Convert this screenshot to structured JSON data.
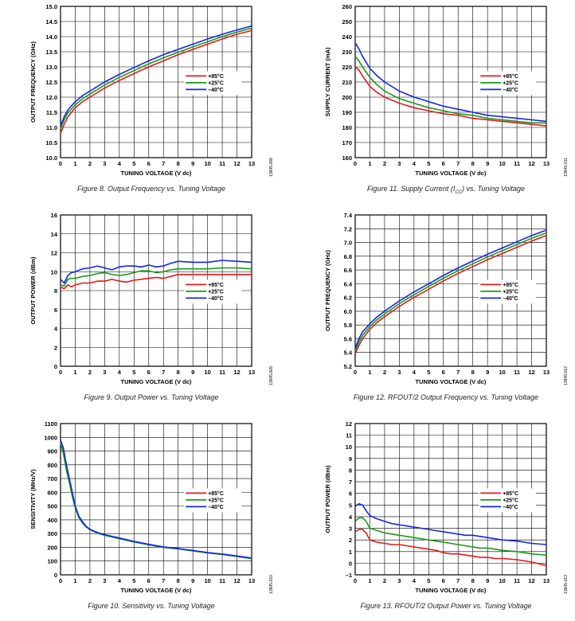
{
  "colors": {
    "p85": "#e41a1c",
    "p25": "#1a9a1a",
    "m40": "#1428e0"
  },
  "legend": [
    "+85°C",
    "+25°C",
    "–40°C"
  ],
  "chart_data": [
    {
      "type": "line",
      "caption": "Figure 8. Output Frequency vs. Tuning Voltage",
      "figid": "13845-008",
      "xlabel": "TUNING VOLTAGE (V dc)",
      "ylabel": "OUTPUT FREQUENCY (GHz)",
      "xlim": [
        0,
        13
      ],
      "ylim": [
        10.0,
        15.0
      ],
      "xticks": [
        "0",
        "1",
        "2",
        "3",
        "4",
        "5",
        "6",
        "7",
        "8",
        "9",
        "10",
        "11",
        "12",
        "13"
      ],
      "yticks": [
        "10.0",
        "10.5",
        "11.0",
        "11.5",
        "12.0",
        "12.5",
        "13.0",
        "13.5",
        "14.0",
        "14.5",
        "15.0"
      ],
      "legend_position": "right",
      "x": [
        0,
        0.25,
        0.5,
        1,
        1.5,
        2,
        3,
        4,
        5,
        6,
        7,
        8,
        9,
        10,
        11,
        12,
        13
      ],
      "series": [
        {
          "name": "+85°C",
          "values": [
            10.8,
            11.1,
            11.35,
            11.65,
            11.85,
            12.0,
            12.3,
            12.55,
            12.78,
            13.0,
            13.2,
            13.4,
            13.58,
            13.75,
            13.92,
            14.08,
            14.2
          ]
        },
        {
          "name": "+25°C",
          "values": [
            10.95,
            11.25,
            11.48,
            11.75,
            11.95,
            12.1,
            12.4,
            12.65,
            12.88,
            13.1,
            13.3,
            13.48,
            13.66,
            13.83,
            14.0,
            14.15,
            14.28
          ]
        },
        {
          "name": "–40°C",
          "values": [
            11.05,
            11.35,
            11.58,
            11.85,
            12.05,
            12.2,
            12.5,
            12.75,
            12.98,
            13.2,
            13.4,
            13.58,
            13.75,
            13.92,
            14.08,
            14.22,
            14.35
          ]
        }
      ]
    },
    {
      "type": "line",
      "caption": "Figure 9. Output Power vs. Tuning Voltage",
      "figid": "13845-009",
      "xlabel": "TUNING VOLTAGE (V dc)",
      "ylabel": "OUTPUT POWER (dBm)",
      "xlim": [
        0,
        13
      ],
      "ylim": [
        0,
        16
      ],
      "xticks": [
        "0",
        "1",
        "2",
        "3",
        "4",
        "5",
        "6",
        "7",
        "8",
        "9",
        "10",
        "11",
        "12",
        "13"
      ],
      "yticks": [
        "0",
        "2",
        "4",
        "6",
        "8",
        "10",
        "12",
        "14",
        "16"
      ],
      "legend_position": "right",
      "x": [
        0,
        0.25,
        0.5,
        0.75,
        1,
        1.5,
        2,
        2.5,
        3,
        3.5,
        4,
        4.5,
        5,
        5.5,
        6,
        6.5,
        7,
        7.5,
        8,
        9,
        10,
        11,
        12,
        13
      ],
      "series": [
        {
          "name": "+85°C",
          "values": [
            8.4,
            8.2,
            8.6,
            8.4,
            8.6,
            8.8,
            8.8,
            9.0,
            9.0,
            9.2,
            9.0,
            8.9,
            9.1,
            9.2,
            9.3,
            9.4,
            9.3,
            9.5,
            9.7,
            9.7,
            9.7,
            9.7,
            9.7,
            9.7
          ]
        },
        {
          "name": "+25°C",
          "values": [
            8.6,
            8.5,
            9.2,
            9.3,
            9.3,
            9.5,
            9.6,
            9.8,
            9.9,
            9.7,
            9.6,
            9.7,
            9.9,
            10.1,
            10.1,
            9.9,
            10.0,
            10.2,
            10.3,
            10.3,
            10.3,
            10.4,
            10.4,
            10.3
          ]
        },
        {
          "name": "–40°C",
          "values": [
            9.2,
            8.8,
            9.6,
            9.9,
            10.0,
            10.3,
            10.4,
            10.6,
            10.4,
            10.2,
            10.5,
            10.6,
            10.6,
            10.5,
            10.7,
            10.5,
            10.6,
            10.9,
            11.1,
            11.0,
            11.0,
            11.2,
            11.1,
            11.0
          ]
        }
      ]
    },
    {
      "type": "line",
      "caption": "Figure 10. Sensitivity vs. Tuning Voltage",
      "figid": "13845-010",
      "xlabel": "TUNING VOLTAGE (V dc)",
      "ylabel": "SENSITIVITY (MHz/V)",
      "xlim": [
        0,
        13
      ],
      "ylim": [
        0,
        1100
      ],
      "xticks": [
        "0",
        "1",
        "2",
        "3",
        "4",
        "5",
        "6",
        "7",
        "8",
        "9",
        "10",
        "11",
        "12",
        "13"
      ],
      "yticks": [
        "0",
        "100",
        "200",
        "300",
        "400",
        "500",
        "600",
        "700",
        "800",
        "900",
        "1000",
        "1100"
      ],
      "legend_position": "right",
      "x": [
        0,
        0.2,
        0.4,
        0.6,
        0.8,
        1,
        1.25,
        1.5,
        1.75,
        2,
        2.5,
        3,
        4,
        5,
        6,
        7,
        8,
        9,
        10,
        11,
        12,
        13
      ],
      "series": [
        {
          "name": "+85°C",
          "values": [
            970,
            900,
            780,
            680,
            580,
            490,
            420,
            380,
            350,
            330,
            305,
            290,
            265,
            240,
            220,
            200,
            190,
            175,
            160,
            150,
            135,
            120
          ]
        },
        {
          "name": "+25°C",
          "values": [
            960,
            880,
            760,
            670,
            570,
            485,
            415,
            375,
            348,
            328,
            303,
            288,
            263,
            238,
            218,
            200,
            188,
            174,
            160,
            148,
            134,
            118
          ]
        },
        {
          "name": "–40°C",
          "values": [
            980,
            920,
            800,
            700,
            600,
            500,
            425,
            385,
            352,
            332,
            308,
            292,
            268,
            243,
            222,
            203,
            191,
            177,
            162,
            151,
            137,
            122
          ]
        }
      ]
    },
    {
      "type": "line",
      "caption": "Figure 11. Supply Current (I",
      "caption_sub": "CC",
      "caption_tail": ") vs. Tuning Voltage",
      "figid": "13845-011",
      "xlabel": "TUNING VOLTAGE (V dc)",
      "ylabel": "SUPPLY CURRENT (mA)",
      "xlim": [
        0,
        13
      ],
      "ylim": [
        160,
        260
      ],
      "xticks": [
        "0",
        "1",
        "2",
        "3",
        "4",
        "5",
        "6",
        "7",
        "8",
        "9",
        "10",
        "11",
        "12",
        "13"
      ],
      "yticks": [
        "160",
        "170",
        "180",
        "190",
        "200",
        "210",
        "220",
        "230",
        "240",
        "250",
        "260"
      ],
      "legend_position": "right",
      "x": [
        0,
        0.25,
        0.5,
        1,
        1.5,
        2,
        3,
        4,
        5,
        6,
        7,
        8,
        9,
        10,
        11,
        12,
        13
      ],
      "series": [
        {
          "name": "+85°C",
          "values": [
            220,
            218,
            214,
            207,
            203,
            200,
            196,
            193,
            191,
            189,
            188,
            186,
            185,
            184,
            183,
            182,
            181
          ]
        },
        {
          "name": "+25°C",
          "values": [
            227,
            224,
            220,
            213,
            208,
            204,
            199,
            196,
            193,
            191,
            189,
            188,
            186,
            185,
            184,
            183,
            183
          ]
        },
        {
          "name": "–40°C",
          "values": [
            236,
            232,
            227,
            219,
            214,
            210,
            204,
            200,
            197,
            194,
            192,
            190,
            188,
            187,
            186,
            185,
            184
          ]
        }
      ]
    },
    {
      "type": "line",
      "caption": "Figure 12. RFOUT/2 Output Frequency vs. Tuning Voltage",
      "figid": "13845-012",
      "xlabel": "TUNING VOLTAGE (V dc)",
      "ylabel": "OUTPUT FREQUENCY (GHz)",
      "xlim": [
        0,
        13
      ],
      "ylim": [
        5.2,
        7.4
      ],
      "xticks": [
        "0",
        "1",
        "2",
        "3",
        "4",
        "5",
        "6",
        "7",
        "8",
        "9",
        "10",
        "11",
        "12",
        "13"
      ],
      "yticks": [
        "5.2",
        "5.4",
        "5.6",
        "5.8",
        "6.0",
        "6.2",
        "6.4",
        "6.6",
        "6.8",
        "7.0",
        "7.2",
        "7.4"
      ],
      "legend_position": "right",
      "x": [
        0,
        0.25,
        0.5,
        1,
        1.5,
        2,
        3,
        4,
        5,
        6,
        7,
        8,
        9,
        10,
        11,
        12,
        13
      ],
      "series": [
        {
          "name": "+85°C",
          "values": [
            5.38,
            5.5,
            5.6,
            5.74,
            5.84,
            5.92,
            6.07,
            6.2,
            6.32,
            6.44,
            6.55,
            6.65,
            6.75,
            6.84,
            6.93,
            7.02,
            7.1
          ]
        },
        {
          "name": "+25°C",
          "values": [
            5.42,
            5.55,
            5.65,
            5.78,
            5.88,
            5.96,
            6.11,
            6.24,
            6.36,
            6.48,
            6.59,
            6.69,
            6.79,
            6.88,
            6.97,
            7.06,
            7.14
          ]
        },
        {
          "name": "–40°C",
          "values": [
            5.46,
            5.6,
            5.7,
            5.82,
            5.92,
            6.0,
            6.15,
            6.28,
            6.4,
            6.52,
            6.63,
            6.73,
            6.83,
            6.92,
            7.01,
            7.1,
            7.18
          ]
        }
      ]
    },
    {
      "type": "line",
      "caption": "Figure 13. RFOUT/2 Output Power vs. Tuning Voltage",
      "figid": "13845-013",
      "xlabel": "TUNING VOLTAGE (V dc)",
      "ylabel": "OUTPUT POWER (dBm)",
      "xlim": [
        0,
        13
      ],
      "ylim": [
        -1,
        12
      ],
      "xticks": [
        "0",
        "1",
        "2",
        "3",
        "4",
        "5",
        "6",
        "7",
        "8",
        "9",
        "10",
        "11",
        "12",
        "13"
      ],
      "yticks": [
        "–1",
        "0",
        "1",
        "2",
        "3",
        "4",
        "5",
        "6",
        "7",
        "8",
        "9",
        "10",
        "11",
        "12"
      ],
      "legend_position": "right",
      "x": [
        0,
        0.25,
        0.5,
        0.75,
        1,
        1.5,
        2,
        2.5,
        3,
        3.5,
        4,
        4.5,
        5,
        5.5,
        6,
        6.5,
        7,
        7.5,
        8,
        8.5,
        9,
        9.5,
        10,
        11,
        12,
        13
      ],
      "series": [
        {
          "name": "+85°C",
          "values": [
            2.7,
            2.9,
            2.9,
            2.6,
            2.0,
            1.8,
            1.7,
            1.6,
            1.6,
            1.5,
            1.4,
            1.3,
            1.2,
            1.1,
            0.9,
            0.8,
            0.8,
            0.7,
            0.6,
            0.5,
            0.5,
            0.4,
            0.4,
            0.3,
            0.1,
            -0.2
          ]
        },
        {
          "name": "+25°C",
          "values": [
            3.6,
            3.9,
            3.9,
            3.6,
            3.0,
            2.8,
            2.6,
            2.5,
            2.4,
            2.3,
            2.2,
            2.1,
            2.0,
            1.9,
            1.8,
            1.7,
            1.6,
            1.5,
            1.4,
            1.3,
            1.3,
            1.2,
            1.1,
            1.0,
            0.8,
            0.7
          ]
        },
        {
          "name": "–40°C",
          "values": [
            4.9,
            5.1,
            5.0,
            4.5,
            4.1,
            3.8,
            3.6,
            3.4,
            3.3,
            3.2,
            3.1,
            3.0,
            2.9,
            2.8,
            2.7,
            2.6,
            2.5,
            2.4,
            2.4,
            2.3,
            2.2,
            2.1,
            2.0,
            1.9,
            1.7,
            1.6
          ]
        }
      ]
    }
  ]
}
